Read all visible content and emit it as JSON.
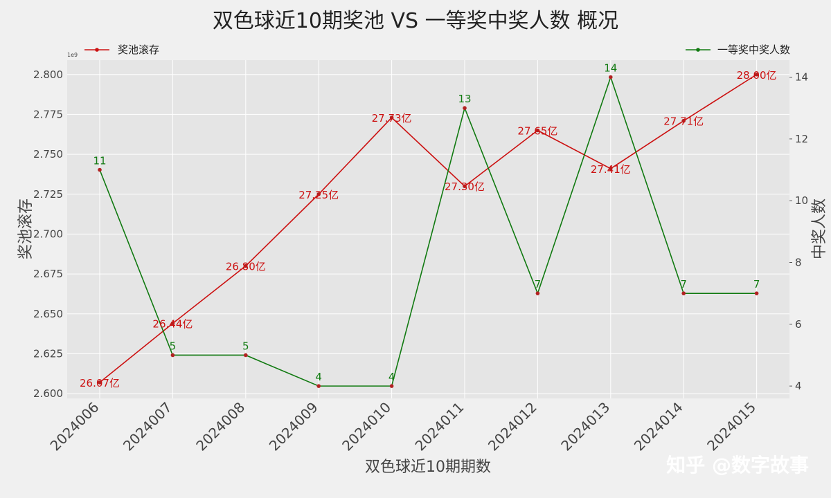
{
  "chart_data": {
    "type": "line",
    "title": "双色球近10期奖池 VS 一等奖中奖人数 概况",
    "xlabel": "双色球近10期期数",
    "ylabel_left": "奖池滚存",
    "ylabel_right": "中奖人数",
    "left_axis_exponent": "1e9",
    "categories": [
      "2024006",
      "2024007",
      "2024008",
      "2024009",
      "2024010",
      "2024011",
      "2024012",
      "2024013",
      "2024014",
      "2024015"
    ],
    "left_ylim": [
      2597000000,
      2809000000
    ],
    "left_yticks": [
      "2.600",
      "2.625",
      "2.650",
      "2.675",
      "2.700",
      "2.725",
      "2.750",
      "2.775",
      "2.800"
    ],
    "right_ylim": [
      3.6,
      14.55
    ],
    "right_yticks": [
      "4",
      "6",
      "8",
      "10",
      "12",
      "14"
    ],
    "grid": true,
    "series": [
      {
        "name": "奖池滚存",
        "axis": "left",
        "color": "#cc1111",
        "values": [
          2607000000,
          2644000000,
          2680000000,
          2725000000,
          2773000000,
          2730000000,
          2765000000,
          2741000000,
          2771000000,
          2800000000
        ],
        "labels": [
          "26.07亿",
          "26.44亿",
          "26.80亿",
          "27.25亿",
          "27.73亿",
          "27.30亿",
          "27.65亿",
          "27.41亿",
          "27.71亿",
          "28.00亿"
        ]
      },
      {
        "name": "一等奖中奖人数",
        "axis": "right",
        "color": "#117a11",
        "values": [
          11,
          5,
          5,
          4,
          4,
          13,
          7,
          14,
          7,
          7
        ],
        "labels": [
          "11",
          "5",
          "5",
          "4",
          "4",
          "13",
          "7",
          "14",
          "7",
          "7"
        ]
      }
    ],
    "legend_left": "top-left",
    "legend_right": "top-right",
    "watermark": "知乎 @数字故事"
  }
}
